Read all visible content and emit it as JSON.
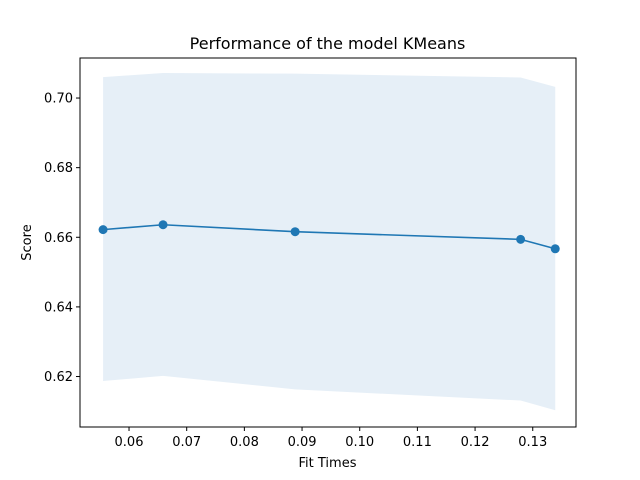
{
  "chart_data": {
    "type": "line",
    "title": "Performance of the model KMeans",
    "xlabel": "Fit Times",
    "ylabel": "Score",
    "xlim": [
      0.0515,
      0.1375
    ],
    "ylim": [
      0.6055,
      0.7115
    ],
    "xticks": [
      0.06,
      0.07,
      0.08,
      0.09,
      0.1,
      0.11,
      0.12,
      0.13
    ],
    "xtick_labels": [
      "0.06",
      "0.07",
      "0.08",
      "0.09",
      "0.10",
      "0.11",
      "0.12",
      "0.13"
    ],
    "yticks": [
      0.62,
      0.64,
      0.66,
      0.68,
      0.7
    ],
    "ytick_labels": [
      "0.62",
      "0.64",
      "0.66",
      "0.68",
      "0.70"
    ],
    "grid": false,
    "series": [
      {
        "x": [
          0.0555,
          0.0659,
          0.0888,
          0.1279,
          0.1339
        ],
        "y": [
          0.6622,
          0.6636,
          0.6616,
          0.6594,
          0.6567
        ],
        "lower": [
          0.6187,
          0.6202,
          0.6163,
          0.6131,
          0.6103
        ],
        "upper": [
          0.706,
          0.7072,
          0.707,
          0.7059,
          0.7032
        ],
        "color": "#1f77b4",
        "band_color": "#e6eff7"
      }
    ]
  }
}
